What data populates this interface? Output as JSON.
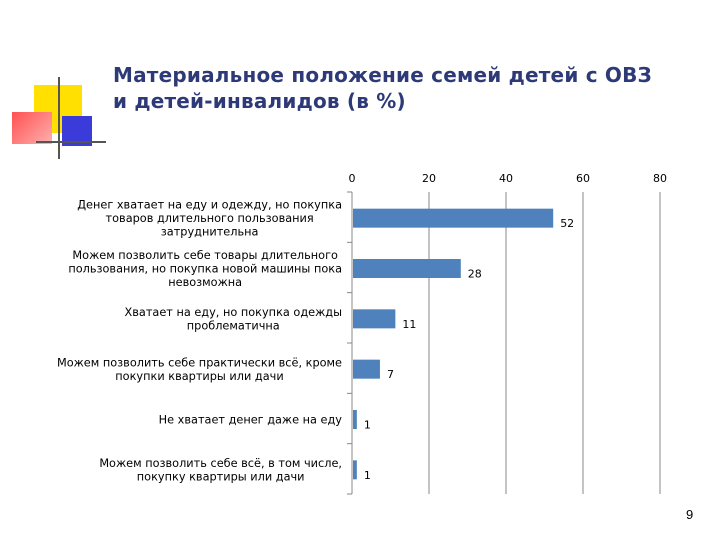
{
  "slide": {
    "title_line1": "Материальное положение семей детей с ОВЗ",
    "title_line2": "и детей-инвалидов (в %)",
    "page_number": "9",
    "colors": {
      "title": "#2e3a78",
      "bar": "#4f81bd",
      "deco_yellow": "#ffe000",
      "deco_blue": "#3b3bd9",
      "deco_red": "#ff5050"
    }
  },
  "chart_data": {
    "type": "bar",
    "orientation": "horizontal",
    "title": "Материальное положение семей детей с ОВЗ и детей-инвалидов (в %)",
    "xlim": [
      0,
      80
    ],
    "ticks": [
      0,
      20,
      40,
      60,
      80
    ],
    "tick_labels": [
      "0",
      "20",
      "40",
      "60",
      "80"
    ],
    "grid": true,
    "axis_position": "top",
    "categories": [
      {
        "lines": [
          "Денег хватает на еду и одежду, но покупка",
          "товаров длительного пользования",
          "затруднительна"
        ],
        "value": 52,
        "label": "52"
      },
      {
        "lines": [
          "Можем позволить себе товары длительного",
          "пользования, но покупка новой машины пока",
          "невозможна"
        ],
        "value": 28,
        "label": "28"
      },
      {
        "lines": [
          "Хватает на еду, но покупка одежды",
          "проблематична"
        ],
        "value": 11,
        "label": "11"
      },
      {
        "lines": [
          "Можем позволить себе практически всё, кроме",
          "покупки квартиры или дачи"
        ],
        "value": 7,
        "label": "7"
      },
      {
        "lines": [
          "Не хватает денег даже на еду"
        ],
        "value": 1,
        "label": "1"
      },
      {
        "lines": [
          "Можем позволить себе всё, в том числе,",
          "покупку квартиры или дачи"
        ],
        "value": 1,
        "label": "1"
      }
    ]
  }
}
